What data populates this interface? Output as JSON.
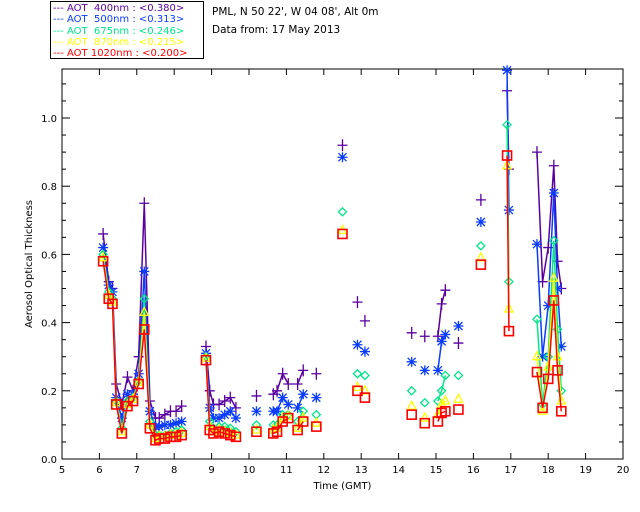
{
  "header": {
    "site": "PML, N 50 22', W 04 08', Alt 0m",
    "date": "Data from: 17 May 2013"
  },
  "chart_data": {
    "type": "line",
    "title": "",
    "xlabel": "Time (GMT)",
    "ylabel": "Aerosol Optical Thickness",
    "xlim": [
      5,
      20
    ],
    "ylim": [
      0,
      1.14
    ],
    "xticks": [
      "5",
      "6",
      "7",
      "8",
      "9",
      "10",
      "11",
      "12",
      "13",
      "14",
      "15",
      "16",
      "17",
      "18",
      "19",
      "20"
    ],
    "yticks": [
      "0.0",
      "0.2",
      "0.4",
      "0.6",
      "0.8",
      "1.0"
    ],
    "legend_position": "top-left-outside",
    "series": [
      {
        "key": "400",
        "legend": "AOT  400nm : <0.380>",
        "color": "#5a00a0",
        "marker": "plus"
      },
      {
        "key": "500",
        "legend": "AOT  500nm : <0.313>",
        "color": "#0a3cff",
        "marker": "asterisk"
      },
      {
        "key": "675",
        "legend": "AOT  675nm : <0.246>",
        "color": "#00e888",
        "marker": "diamond"
      },
      {
        "key": "870",
        "legend": "AOT  870nm : <0.215>",
        "color": "#ffff00",
        "marker": "triangle"
      },
      {
        "key": "1020",
        "legend": "AOT 1020nm : <0.200>",
        "color": "#ff0000",
        "marker": "square"
      }
    ],
    "segments": [
      {
        "t": [
          6.1,
          6.25,
          6.35,
          6.45,
          6.6,
          6.75,
          6.9,
          7.05,
          7.2,
          7.35,
          7.5,
          7.6,
          7.75,
          7.9,
          8.05,
          8.2
        ],
        "400": [
          0.66,
          0.52,
          0.5,
          0.22,
          0.16,
          0.24,
          0.2,
          0.3,
          0.75,
          0.17,
          0.12,
          0.12,
          0.13,
          0.14,
          0.14,
          0.155
        ],
        "500": [
          0.62,
          0.51,
          0.49,
          0.18,
          0.12,
          0.19,
          0.19,
          0.25,
          0.55,
          0.14,
          0.095,
          0.095,
          0.1,
          0.1,
          0.105,
          0.11
        ],
        "675": [
          0.6,
          0.49,
          0.47,
          0.17,
          0.09,
          0.17,
          0.18,
          0.23,
          0.47,
          0.11,
          0.07,
          0.07,
          0.07,
          0.075,
          0.08,
          0.085
        ],
        "870": [
          0.59,
          0.48,
          0.46,
          0.165,
          0.08,
          0.16,
          0.175,
          0.225,
          0.43,
          0.1,
          0.06,
          0.065,
          0.065,
          0.07,
          0.07,
          0.075
        ],
        "1020": [
          0.58,
          0.47,
          0.455,
          0.16,
          0.075,
          0.155,
          0.17,
          0.22,
          0.38,
          0.09,
          0.055,
          0.06,
          0.06,
          0.065,
          0.065,
          0.07
        ]
      },
      {
        "t": [
          8.85,
          8.95,
          9.05,
          9.2,
          9.35,
          9.5,
          9.65
        ],
        "400": [
          0.33,
          0.2,
          0.16,
          0.16,
          0.17,
          0.18,
          0.15
        ],
        "500": [
          0.31,
          0.15,
          0.12,
          0.12,
          0.13,
          0.14,
          0.12
        ],
        "675": [
          0.3,
          0.11,
          0.09,
          0.095,
          0.095,
          0.09,
          0.08
        ],
        "870": [
          0.295,
          0.095,
          0.08,
          0.085,
          0.08,
          0.075,
          0.07
        ],
        "1020": [
          0.29,
          0.085,
          0.075,
          0.08,
          0.075,
          0.07,
          0.065
        ]
      },
      {
        "t": [
          10.2
        ],
        "400": [
          0.185
        ],
        "500": [
          0.14
        ],
        "675": [
          0.1
        ],
        "870": [
          0.085
        ],
        "1020": [
          0.08
        ]
      },
      {
        "t": [
          10.65,
          10.75,
          10.9,
          11.05
        ],
        "400": [
          0.19,
          0.2,
          0.25,
          0.22
        ],
        "500": [
          0.14,
          0.14,
          0.18,
          0.16
        ],
        "675": [
          0.1,
          0.1,
          0.13,
          0.13
        ],
        "870": [
          0.085,
          0.09,
          0.12,
          0.125
        ],
        "1020": [
          0.075,
          0.08,
          0.11,
          0.12
        ]
      },
      {
        "t": [
          11.3,
          11.45
        ],
        "400": [
          0.22,
          0.26
        ],
        "500": [
          0.15,
          0.19
        ],
        "675": [
          0.11,
          0.14
        ],
        "870": [
          0.09,
          0.12
        ],
        "1020": [
          0.085,
          0.11
        ]
      },
      {
        "t": [
          11.8
        ],
        "400": [
          0.25
        ],
        "500": [
          0.18
        ],
        "675": [
          0.13
        ],
        "870": [
          0.105
        ],
        "1020": [
          0.095
        ]
      },
      {
        "t": [
          12.5
        ],
        "400": [
          0.92
        ],
        "500": [
          0.885
        ],
        "675": [
          0.725
        ],
        "870": [
          0.67
        ],
        "1020": [
          0.66
        ]
      },
      {
        "t": [
          12.9
        ],
        "400": [
          0.46
        ],
        "500": [
          0.335
        ],
        "675": [
          0.25
        ],
        "870": [
          0.21
        ],
        "1020": [
          0.2
        ]
      },
      {
        "t": [
          13.1
        ],
        "400": [
          0.405
        ],
        "500": [
          0.315
        ],
        "675": [
          0.245
        ],
        "870": [
          0.2
        ],
        "1020": [
          0.18
        ]
      },
      {
        "t": [
          14.35
        ],
        "400": [
          0.37
        ],
        "500": [
          0.285
        ],
        "675": [
          0.2
        ],
        "870": [
          0.155
        ],
        "1020": [
          0.13
        ]
      },
      {
        "t": [
          14.7
        ],
        "400": [
          0.36
        ],
        "500": [
          0.26
        ],
        "675": [
          0.165
        ],
        "870": [
          0.12
        ],
        "1020": [
          0.105
        ]
      },
      {
        "t": [
          15.05,
          15.15,
          15.25
        ],
        "400": [
          0.36,
          0.455,
          0.495
        ],
        "500": [
          0.26,
          0.345,
          0.365
        ],
        "675": [
          0.17,
          0.2,
          0.245
        ],
        "870": [
          0.13,
          0.16,
          0.17
        ],
        "1020": [
          0.11,
          0.135,
          0.14
        ]
      },
      {
        "t": [
          15.6
        ],
        "400": [
          0.34
        ],
        "500": [
          0.39
        ],
        "675": [
          0.245
        ],
        "870": [
          0.175
        ],
        "1020": [
          0.145
        ]
      },
      {
        "t": [
          16.2
        ],
        "400": [
          0.76
        ],
        "500": [
          0.695
        ],
        "675": [
          0.625
        ],
        "870": [
          0.59
        ],
        "1020": [
          0.57
        ]
      },
      {
        "t": [
          16.9,
          16.95
        ],
        "400": [
          1.08,
          0.85
        ],
        "500": [
          1.14,
          0.73
        ],
        "675": [
          0.98,
          0.52
        ],
        "870": [
          0.86,
          0.44
        ],
        "1020": [
          0.89,
          0.375
        ]
      },
      {
        "t": [
          17.7,
          17.85,
          18.0,
          18.15,
          18.25,
          18.35
        ],
        "400": [
          0.9,
          0.52,
          0.62,
          0.86,
          0.58,
          0.5
        ],
        "500": [
          0.63,
          0.3,
          0.45,
          0.78,
          0.5,
          0.33
        ],
        "675": [
          0.41,
          0.16,
          0.3,
          0.64,
          0.38,
          0.2
        ],
        "870": [
          0.3,
          0.14,
          0.27,
          0.53,
          0.3,
          0.17
        ],
        "1020": [
          0.255,
          0.15,
          0.235,
          0.465,
          0.26,
          0.14
        ]
      }
    ]
  }
}
